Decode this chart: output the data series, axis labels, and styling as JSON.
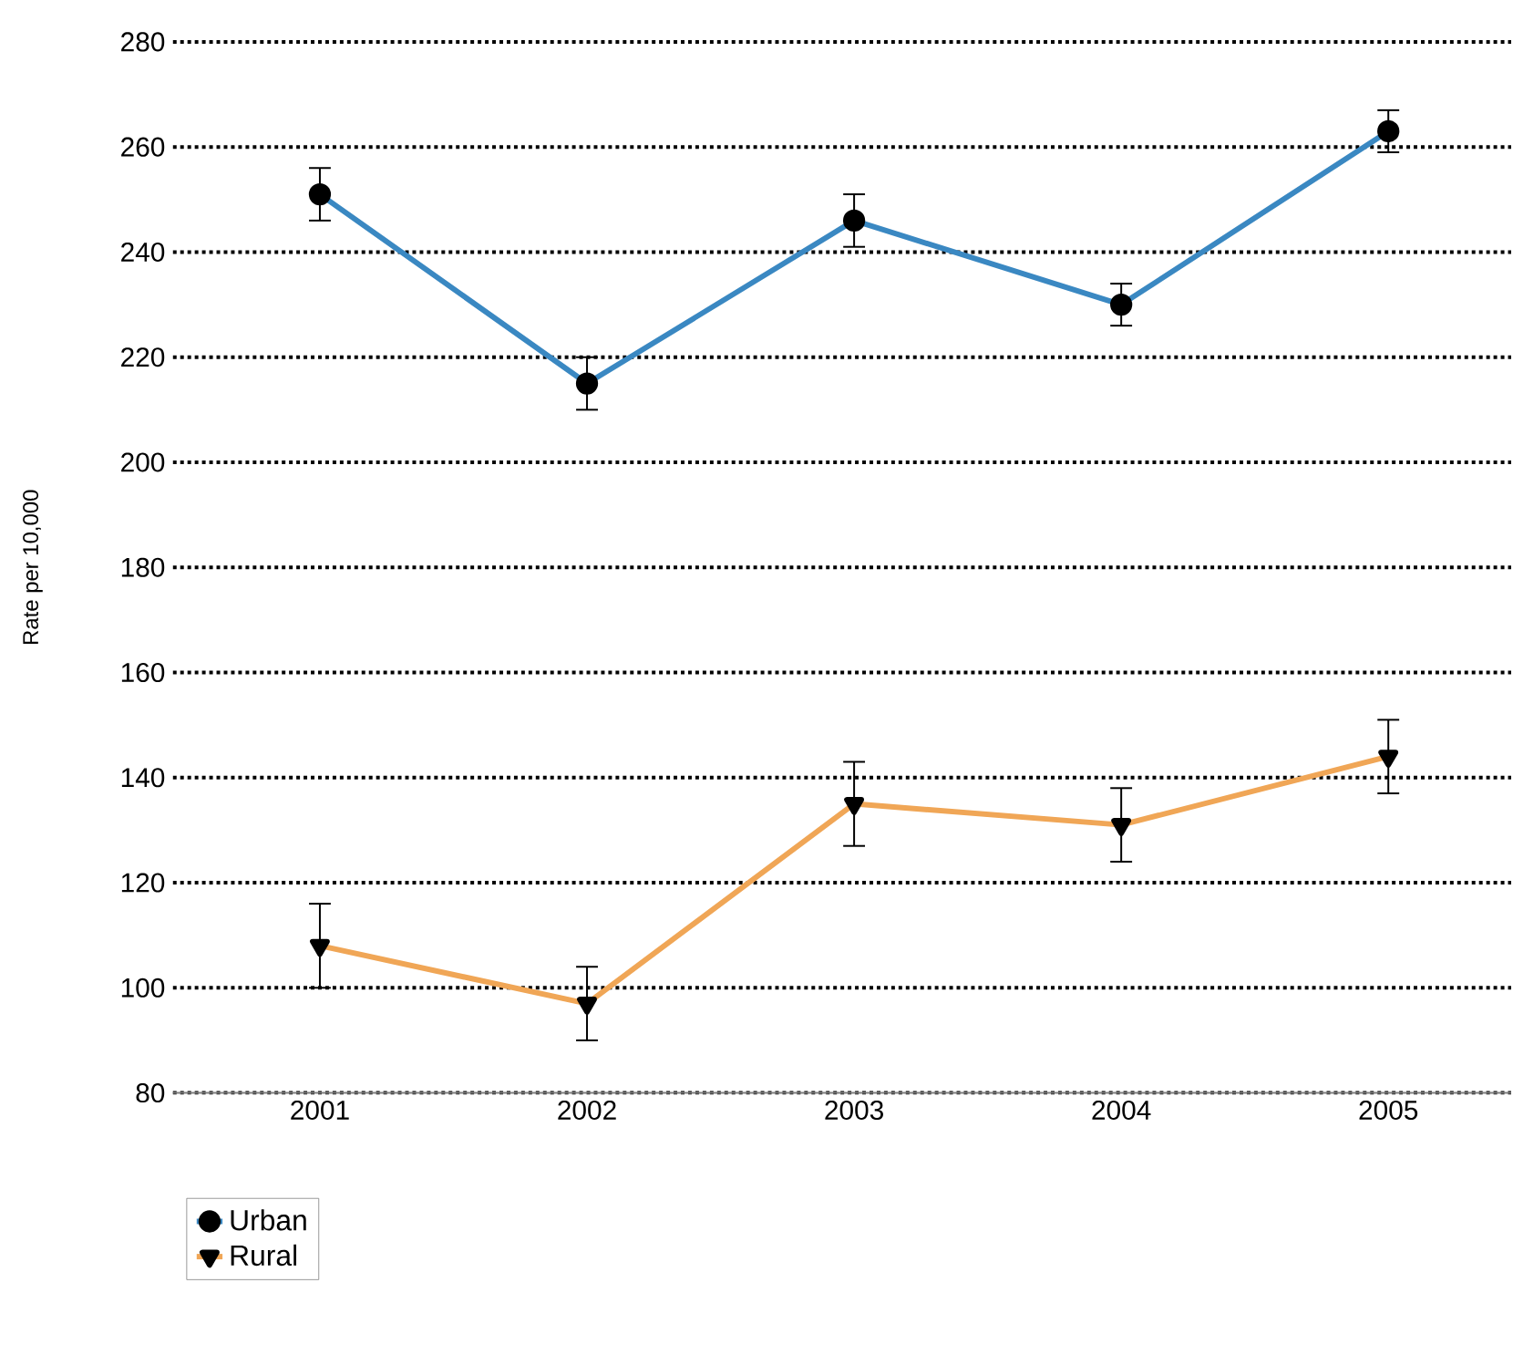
{
  "chart_data": {
    "type": "line",
    "ylabel": "Rate per 10,000",
    "categories": [
      "2001",
      "2002",
      "2003",
      "2004",
      "2005"
    ],
    "series": [
      {
        "name": "Urban",
        "color": "#3a88c2",
        "marker": "circle",
        "values": [
          251,
          215,
          246,
          230,
          263
        ],
        "errors": [
          5,
          5,
          5,
          4,
          4
        ]
      },
      {
        "name": "Rural",
        "color": "#f0a656",
        "marker": "triangle",
        "values": [
          108,
          97,
          135,
          131,
          144
        ],
        "errors": [
          8,
          7,
          8,
          7,
          7
        ]
      }
    ],
    "ylim": [
      80,
      280
    ],
    "yticks": [
      80,
      100,
      120,
      140,
      160,
      180,
      200,
      220,
      240,
      260,
      280
    ],
    "grid": "y",
    "legend": "bottom left"
  }
}
